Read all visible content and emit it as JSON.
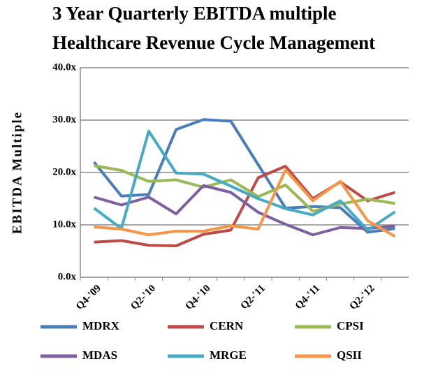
{
  "chart_data": {
    "type": "line",
    "title": [
      "3 Year Quarterly EBITDA multiple",
      "Healthcare Revenue Cycle Management"
    ],
    "y_label": "EBITDA Multiple",
    "categories": [
      "Q4-'09",
      null,
      "Q2-'10",
      null,
      "Q4-'10",
      null,
      "Q2-'11",
      null,
      "Q4-'11",
      null,
      "Q2-'12",
      null
    ],
    "series": [
      {
        "name": "MDRX",
        "color": "#4a7ebb",
        "values": [
          22.0,
          15.5,
          15.8,
          28.2,
          30.1,
          29.8,
          21.5,
          13.2,
          13.5,
          13.3,
          8.6,
          9.3
        ]
      },
      {
        "name": "CERN",
        "color": "#be4b48",
        "values": [
          6.7,
          7.0,
          6.1,
          6.0,
          8.2,
          9.0,
          19.0,
          21.2,
          15.0,
          18.2,
          14.6,
          16.2
        ]
      },
      {
        "name": "CPSI",
        "color": "#98b954",
        "values": [
          21.3,
          20.4,
          18.3,
          18.6,
          17.2,
          18.6,
          15.4,
          17.6,
          12.6,
          14.0,
          14.9,
          14.1
        ]
      },
      {
        "name": "MDAS",
        "color": "#7d60a0",
        "values": [
          15.3,
          13.8,
          15.3,
          12.1,
          17.5,
          16.2,
          12.4,
          10.1,
          8.1,
          9.5,
          9.3,
          9.8
        ]
      },
      {
        "name": "MRGE",
        "color": "#46aac5",
        "values": [
          13.2,
          9.3,
          27.9,
          19.9,
          19.7,
          17.4,
          15.0,
          13.1,
          11.9,
          14.6,
          9.0,
          12.5
        ]
      },
      {
        "name": "QSII",
        "color": "#f79646",
        "values": [
          9.6,
          9.2,
          8.1,
          8.8,
          8.8,
          9.8,
          9.2,
          20.5,
          14.6,
          18.3,
          10.8,
          7.8
        ]
      }
    ],
    "ylim": [
      0,
      40
    ],
    "yticks": [
      {
        "value": 0,
        "label": "0.0x"
      },
      {
        "value": 10,
        "label": "10.0x"
      },
      {
        "value": 20,
        "label": "20.0x"
      },
      {
        "value": 30,
        "label": "30.0x"
      },
      {
        "value": 40,
        "label": "40.0x"
      }
    ],
    "grid": true
  }
}
